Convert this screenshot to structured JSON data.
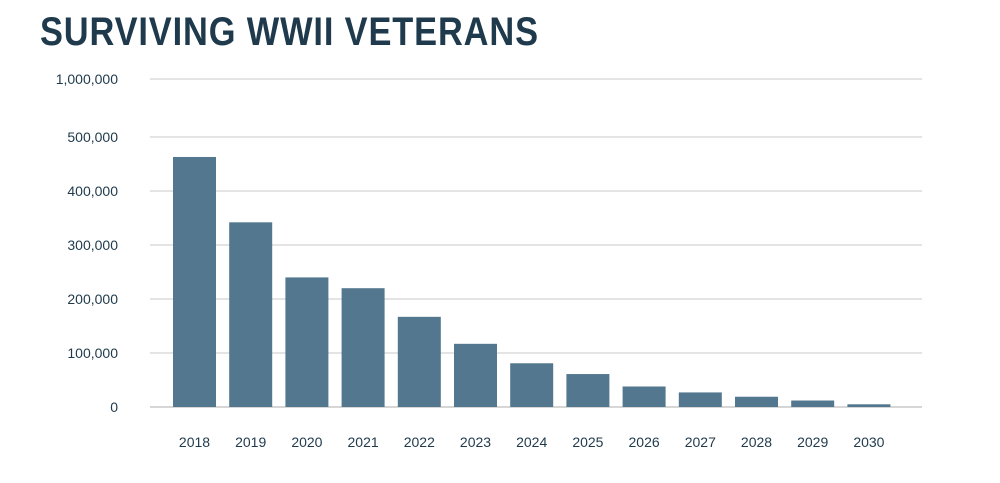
{
  "title": "SURVIVING WWII VETERANS",
  "colors": {
    "bar": "#52778e",
    "grid": "#c8c8c8",
    "text": "#1f3a4c"
  },
  "chart_data": {
    "type": "bar",
    "title": "SURVIVING WWII VETERANS",
    "categories": [
      "2018",
      "2019",
      "2020",
      "2021",
      "2022",
      "2023",
      "2024",
      "2025",
      "2026",
      "2027",
      "2028",
      "2029",
      "2030"
    ],
    "values": [
      463000,
      342000,
      240000,
      220000,
      167000,
      117000,
      81000,
      61000,
      38000,
      27000,
      19000,
      12000,
      5000
    ],
    "ytick_labels": [
      "0",
      "100,000",
      "200,000",
      "300,000",
      "400,000",
      "500,000",
      "1,000,000"
    ],
    "ytick_values": [
      0,
      100000,
      200000,
      300000,
      400000,
      500000,
      1000000
    ],
    "ylim": [
      0,
      1000000
    ],
    "axis_break": {
      "from": 500000,
      "to": 1000000
    },
    "xlabel": "",
    "ylabel": "",
    "grid": true,
    "legend": "none"
  }
}
